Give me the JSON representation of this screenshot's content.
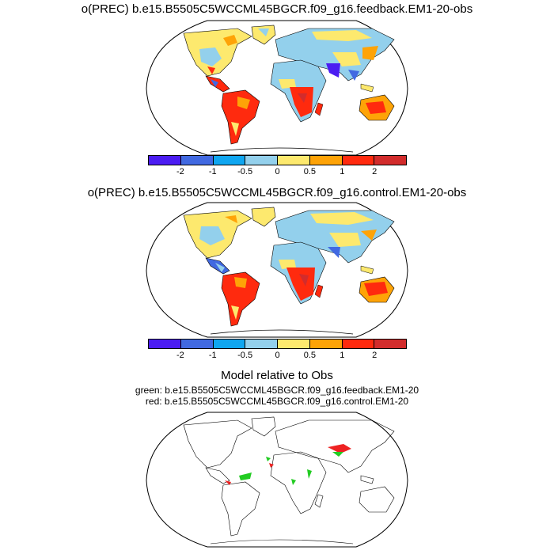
{
  "panels": [
    {
      "title": "o(PREC) b.e15.B5505C5WCCML45BGCR.f09_g16.feedback.EM1-20-obs"
    },
    {
      "title": "o(PREC) b.e15.B5505C5WCCML45BGCR.f09_g16.control.EM1-20-obs"
    }
  ],
  "colorbar": {
    "colors": [
      "#4b1cf2",
      "#4169e1",
      "#10a6f0",
      "#93d0ec",
      "#fde96e",
      "#fea307",
      "#ff2a0e",
      "#d22c2c"
    ],
    "tick_labels": [
      "-2",
      "-1",
      "-0.5",
      "0",
      "0.5",
      "1",
      "2"
    ]
  },
  "comparison": {
    "title": "Model relative to Obs",
    "legend_green": "green: b.e15.B5505C5WCCML45BGCR.f09_g16.feedback.EM1-20",
    "legend_red": "red: b.e15.B5505C5WCCML45BGCR.f09_g16.control.EM1-20",
    "green_color": "#22cc22",
    "red_color": "#ee2222"
  }
}
